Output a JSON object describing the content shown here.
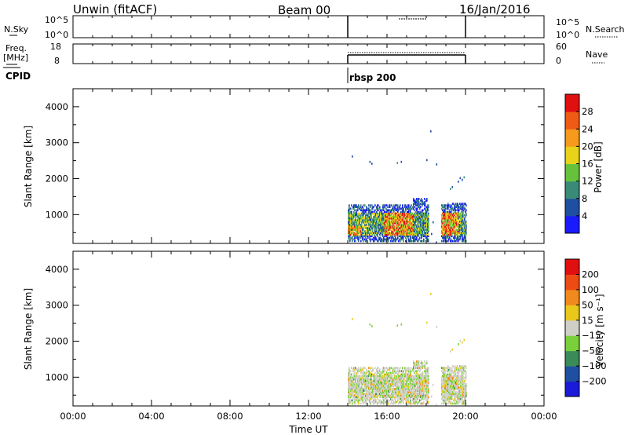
{
  "header": {
    "station": "Unwin (fitACF)",
    "beam": "Beam 00",
    "date": "16/Jan/2016"
  },
  "top_panels": {
    "nsky_label": "N.Sky",
    "nsearch_label": "N.Search",
    "noise_ticks": [
      "10^5",
      "10^0"
    ],
    "freq_label_1": "Freq.",
    "freq_label_2": "[MHz]",
    "freq_ticks": [
      "18",
      "8"
    ],
    "nave_ticks": [
      "60",
      "0"
    ],
    "nave_label": "Nave",
    "cpid_label": "CPID",
    "cpid_value": "rbsp 200"
  },
  "chart_data": [
    {
      "type": "heatmap",
      "name": "power",
      "ylabel": "Slant Range [km]",
      "ylim": [
        200,
        4500
      ],
      "yticks": [
        1000,
        2000,
        3000,
        4000
      ],
      "xlim": [
        0,
        24
      ],
      "colorbar_label": "Power [dB]",
      "colorbar_ticks": [
        "4",
        "8",
        "12",
        "16",
        "20",
        "24",
        "28"
      ],
      "colors": [
        "#1a1aff",
        "#1f4fa0",
        "#3a8a78",
        "#66c23a",
        "#e8d21a",
        "#f59a1c",
        "#ef5a14",
        "#e01010"
      ]
    },
    {
      "type": "heatmap",
      "name": "velocity",
      "ylabel": "Slant Range [km]",
      "ylim": [
        200,
        4500
      ],
      "yticks": [
        1000,
        2000,
        3000,
        4000
      ],
      "xlim": [
        0,
        24
      ],
      "xlabel": "Time UT",
      "xticks": [
        "00:00",
        "04:00",
        "08:00",
        "12:00",
        "16:00",
        "20:00",
        "00:00"
      ],
      "colorbar_label": "Velocity [m s⁻¹]",
      "colorbar_ticks": [
        "200",
        "100",
        "50",
        "15",
        "−15",
        "−50",
        "−100",
        "−200"
      ],
      "colors": [
        "#1a1ad8",
        "#1f4fa0",
        "#3a8a5a",
        "#7ad03a",
        "#cfcfc6",
        "#e8c81a",
        "#f08a1c",
        "#ee4a14",
        "#e01010"
      ]
    }
  ]
}
